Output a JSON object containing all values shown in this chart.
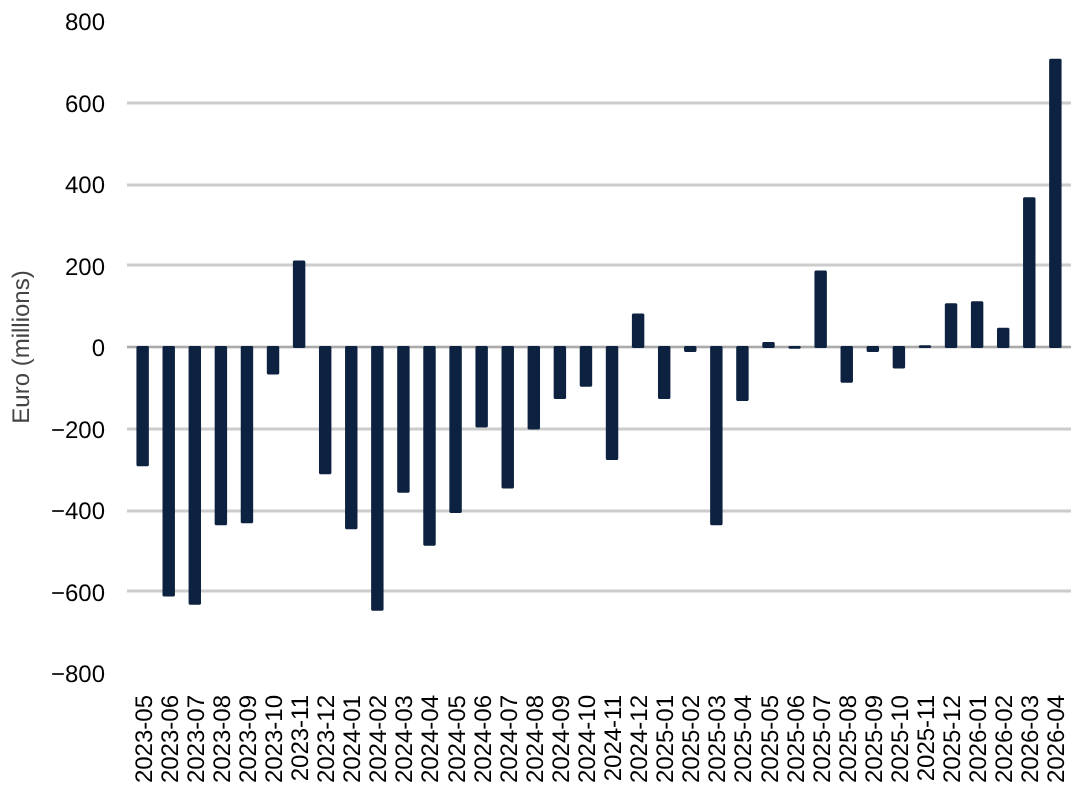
{
  "chart_data": {
    "type": "bar",
    "ylabel": "Euro (millions)",
    "categories": [
      "2023-05",
      "2023-06",
      "2023-07",
      "2023-08",
      "2023-09",
      "2023-10",
      "2023-11",
      "2023-12",
      "2024-01",
      "2024-02",
      "2024-03",
      "2024-04",
      "2024-05",
      "2024-06",
      "2024-07",
      "2024-08",
      "2024-09",
      "2024-10",
      "2024-11",
      "2024-12",
      "2025-01",
      "2025-02",
      "2025-03",
      "2025-04",
      "2025-05",
      "2025-06",
      "2025-07",
      "2025-08",
      "2025-09",
      "2025-10",
      "2025-11",
      "2025-12",
      "2026-01",
      "2026-02",
      "2026-03",
      "2026-04"
    ],
    "values": [
      -290,
      -610,
      -630,
      -435,
      -430,
      -65,
      210,
      -310,
      -445,
      -645,
      -355,
      -485,
      -405,
      -195,
      -345,
      -200,
      -125,
      -95,
      -275,
      80,
      -125,
      -10,
      -435,
      -130,
      10,
      -2,
      185,
      -85,
      -10,
      -50,
      2,
      105,
      110,
      45,
      365,
      705
    ],
    "color": "#0d2240",
    "ylim": [
      -800,
      800
    ],
    "yticks": [
      -800,
      -600,
      -400,
      -200,
      0,
      200,
      400,
      600,
      800
    ],
    "grid": "y"
  }
}
